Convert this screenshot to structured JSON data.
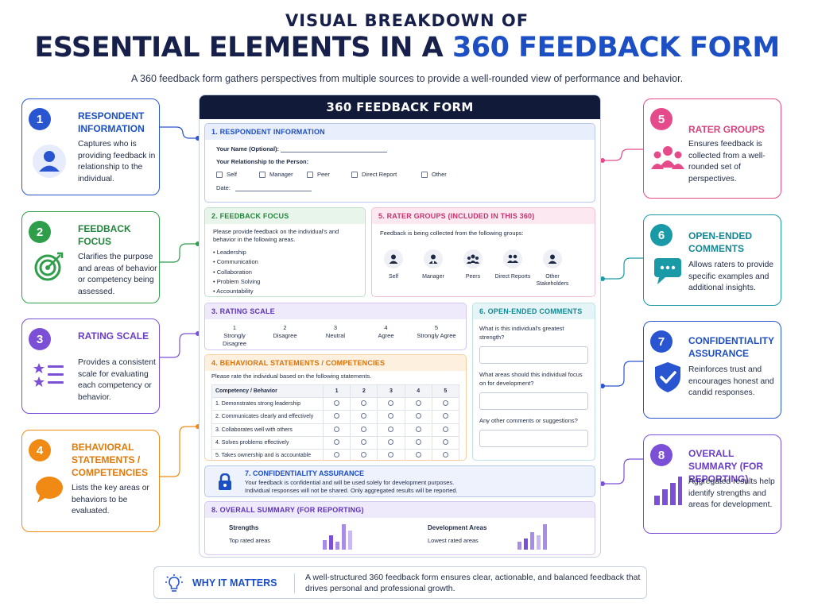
{
  "header": {
    "supertitle": "VISUAL BREAKDOWN OF",
    "title_main": "ESSENTIAL ELEMENTS IN A ",
    "title_accent": "360 FEEDBACK FORM",
    "subtitle": "A 360 feedback form gathers perspectives from multiple sources to provide a well-rounded view of performance and behavior."
  },
  "callouts": [
    {
      "num": "1",
      "title": "RESPONDENT INFORMATION",
      "desc": "Captures who is providing feedback in relationship to the individual.",
      "icon": "user-icon",
      "color": "#2a55d0"
    },
    {
      "num": "2",
      "title": "FEEDBACK FOCUS",
      "desc": "Clarifies the purpose and areas of behavior or competency being assessed.",
      "icon": "target-icon",
      "color": "#2e9e4a"
    },
    {
      "num": "3",
      "title": "RATING SCALE",
      "desc": "Provides a consistent scale for evaluating each competency or behavior.",
      "icon": "star-list-icon",
      "color": "#7b4fd6"
    },
    {
      "num": "4",
      "title": "BEHAVIORAL STATEMENTS / COMPETENCIES",
      "desc": "Lists the key areas or behaviors to be evaluated.",
      "icon": "speech-bubble-icon",
      "color": "#f08a14"
    },
    {
      "num": "5",
      "title": "RATER GROUPS",
      "desc": "Ensures feedback is collected from a well-rounded set of perspectives.",
      "icon": "group-icon",
      "color": "#e54b8a"
    },
    {
      "num": "6",
      "title": "OPEN-ENDED COMMENTS",
      "desc": "Allows raters to provide specific examples and additional insights.",
      "icon": "chat-icon",
      "color": "#1a9aa6"
    },
    {
      "num": "7",
      "title": "CONFIDENTIALITY ASSURANCE",
      "desc": "Reinforces trust and encourages honest and candid responses.",
      "icon": "shield-check-icon",
      "color": "#2a55d0"
    },
    {
      "num": "8",
      "title": "OVERALL SUMMARY (FOR REPORTING)",
      "desc": "Aggregated results help identify strengths and areas for development.",
      "icon": "bar-chart-icon",
      "color": "#7b4fd6"
    }
  ],
  "form": {
    "title": "360 FEEDBACK FORM",
    "respondent": {
      "heading": "1.  RESPONDENT INFORMATION",
      "name_label": "Your Name (Optional):",
      "relationship_label": "Your Relationship to the Person:",
      "options": [
        "Self",
        "Manager",
        "Peer",
        "Direct Report",
        "Other"
      ],
      "date_label": "Date:"
    },
    "focus": {
      "heading": "2.  FEEDBACK FOCUS",
      "intro": "Please provide feedback on the individual's and behavior in the following areas.",
      "areas": [
        "Leadership",
        "Communication",
        "Collaboration",
        "Problem Solving",
        "Accountability"
      ]
    },
    "rater_groups": {
      "heading": "5.  RATER GROUPS (INCLUDED IN THIS 360)",
      "intro": "Feedback is being collected from the following groups:",
      "groups": [
        "Self",
        "Manager",
        "Peers",
        "Direct Reports",
        "Other Stakeholders"
      ]
    },
    "rating_scale": {
      "heading": "3.  RATING SCALE",
      "scale": [
        {
          "n": "1",
          "label": "Strongly Disagree"
        },
        {
          "n": "2",
          "label": "Disagree"
        },
        {
          "n": "3",
          "label": "Neutral"
        },
        {
          "n": "4",
          "label": "Agree"
        },
        {
          "n": "5",
          "label": "Strongly Agree"
        }
      ]
    },
    "statements": {
      "heading": "4.  BEHAVIORAL STATEMENTS / COMPETENCIES",
      "intro": "Please rate the individual based on the following statements.",
      "col_header": "Competency / Behavior",
      "cols": [
        "1",
        "2",
        "3",
        "4",
        "5"
      ],
      "rows": [
        "1.  Demonstrates strong leadership",
        "2.  Communicates clearly and effectively",
        "3.  Collaborates well with others",
        "4.  Solves problems effectively",
        "5.  Takes ownership and is accountable"
      ]
    },
    "comments": {
      "heading": "6.  OPEN-ENDED COMMENTS",
      "questions": [
        "What is this individual's greatest strength?",
        "What areas should this individual focus on for development?",
        "Any other comments or suggestions?"
      ]
    },
    "confidentiality": {
      "heading": "7.  CONFIDENTIALITY ASSURANCE",
      "line1": "Your feedback is confidential and will be used solely for development purposes.",
      "line2": "Individual responses will not be shared. Only aggregated results will be reported."
    },
    "summary": {
      "heading": "8.  OVERALL SUMMARY (FOR REPORTING)",
      "strengths_label": "Strengths",
      "strengths_sub": "Top rated areas",
      "dev_label": "Development Areas",
      "dev_sub": "Lowest rated areas"
    }
  },
  "why": {
    "title": "WHY IT MATTERS",
    "text": "A well-structured 360 feedback form ensures clear, actionable, and balanced feedback that drives personal and professional growth."
  }
}
